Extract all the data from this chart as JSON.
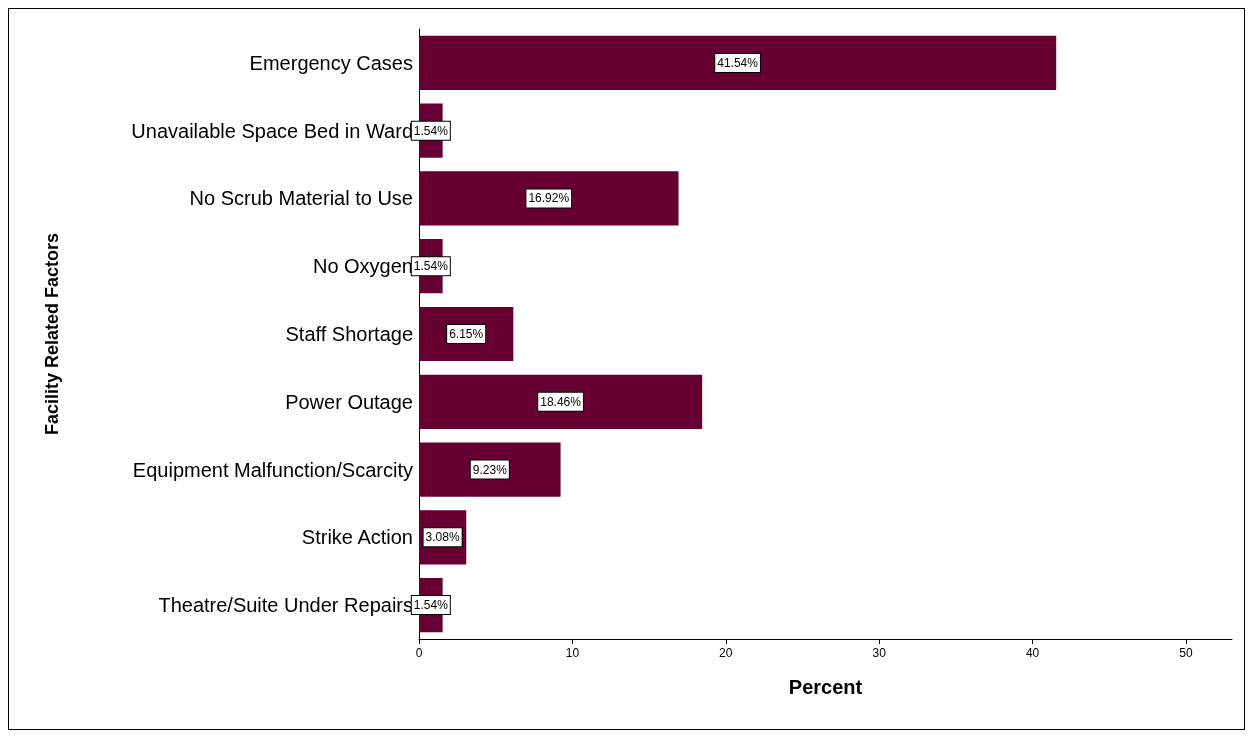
{
  "chart_data": {
    "type": "bar",
    "orientation": "horizontal",
    "xlabel": "Percent",
    "ylabel": "Facility Related Factors",
    "categories": [
      "Emergency Cases",
      "Unavailable Space Bed in Ward",
      "No Scrub Material to Use",
      "No Oxygen",
      "Staff Shortage",
      "Power Outage",
      "Equipment Malfunction/Scarcity",
      "Strike Action",
      "Theatre/Suite Under Repairs"
    ],
    "values": [
      41.54,
      1.54,
      16.92,
      1.54,
      6.15,
      18.46,
      9.23,
      3.08,
      1.54
    ],
    "value_labels": [
      "41.54%",
      "1.54%",
      "16.92%",
      "1.54%",
      "6.15%",
      "18.46%",
      "9.23%",
      "3.08%",
      "1.54%"
    ],
    "color": "#660033",
    "xlim": [
      0,
      53
    ],
    "xticks": [
      0,
      10,
      20,
      30,
      40,
      50
    ],
    "grid": false
  }
}
